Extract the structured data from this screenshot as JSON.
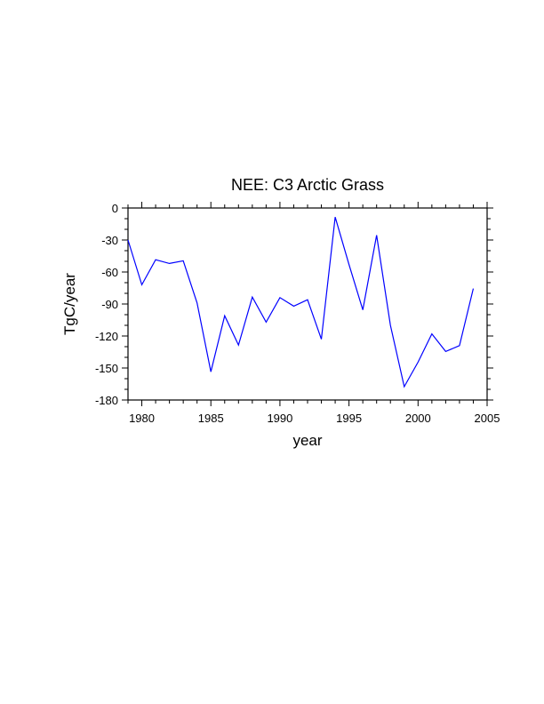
{
  "chart_data": {
    "type": "line",
    "title": "NEE: C3 Arctic Grass",
    "xlabel": "year",
    "ylabel": "TgC/year",
    "xlim": [
      1979,
      2005
    ],
    "ylim": [
      -180,
      0
    ],
    "xticks": [
      1980,
      1985,
      1990,
      1995,
      2000,
      2005
    ],
    "yticks": [
      0,
      -30,
      -60,
      -90,
      -120,
      -150,
      -180
    ],
    "grid": false,
    "series": [
      {
        "name": "NEE",
        "color": "#0000ff",
        "x": [
          1979,
          1980,
          1981,
          1982,
          1983,
          1984,
          1985,
          1986,
          1987,
          1988,
          1989,
          1990,
          1991,
          1992,
          1993,
          1994,
          1995,
          1996,
          1997,
          1998,
          1999,
          2000,
          2001,
          2002,
          2003,
          2004
        ],
        "y": [
          -30,
          -72,
          -48.5,
          -52,
          -49.5,
          -89,
          -153.5,
          -101,
          -128.5,
          -83.5,
          -107,
          -84,
          -92,
          -86,
          -123,
          -8.5,
          -53,
          -95.5,
          -25.5,
          -110,
          -167.5,
          -144.5,
          -118,
          -134.5,
          -129,
          -75.5
        ]
      }
    ]
  }
}
